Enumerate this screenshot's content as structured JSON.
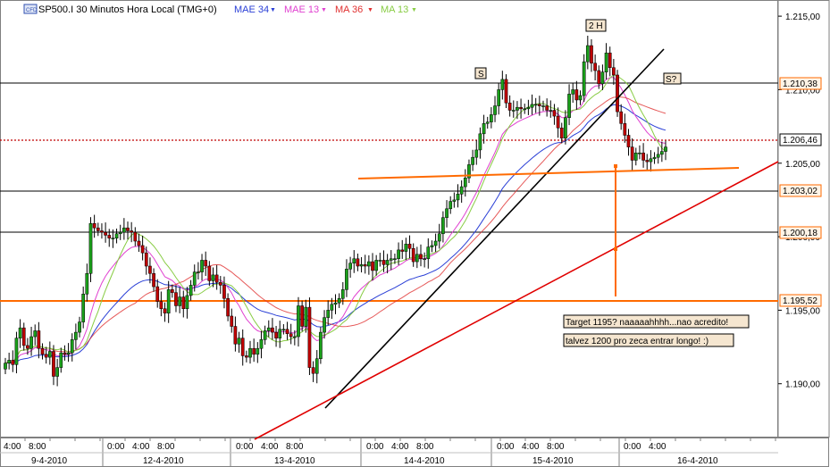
{
  "header": {
    "symbol_icon": "cfd-icon",
    "title": "SP500.I 30 Minutos Hora Local (TMG+0)",
    "indicators": [
      {
        "label": "MAE 34",
        "color": "#2a3fd6"
      },
      {
        "label": "MAE 13",
        "color": "#e040d0"
      },
      {
        "label": "MA 36",
        "color": "#e03030"
      },
      {
        "label": "MA 13",
        "color": "#88cc44"
      }
    ]
  },
  "chart_data": {
    "type": "candlestick",
    "y_axis": {
      "ylim": [
        1.1864,
        1.2161
      ],
      "ticks": [
        "1.215,00",
        "1.210,00",
        "1.205,00",
        "1.200,00",
        "1.195,00",
        "1.190,00"
      ],
      "tick_values": [
        1.215,
        1.21,
        1.205,
        1.2,
        1.195,
        1.19
      ]
    },
    "x_axis": {
      "days": [
        "9-4-2010",
        "12-4-2010",
        "13-4-2010",
        "14-4-2010",
        "15-4-2010",
        "16-4-2010"
      ],
      "session_hours": [
        "0:00",
        "4:00",
        "8:00"
      ]
    },
    "close": [
      1.1914,
      1.1916,
      1.1913,
      1.1931,
      1.1938,
      1.1926,
      1.1924,
      1.1932,
      1.1936,
      1.1924,
      1.192,
      1.1918,
      1.1922,
      1.1905,
      1.1911,
      1.1921,
      1.192,
      1.1921,
      1.193,
      1.1935,
      1.1942,
      1.1961,
      1.1975,
      1.2009,
      1.2006,
      1.2004,
      1.2003,
      1.2001,
      1.1999,
      1.1999,
      1.2002,
      1.2003,
      1.2006,
      1.2004,
      1.2003,
      1.1997,
      1.1994,
      1.1989,
      1.198,
      1.1975,
      1.1966,
      1.1956,
      1.1951,
      1.1948,
      1.1964,
      1.1962,
      1.1953,
      1.1959,
      1.1951,
      1.196,
      1.1967,
      1.1976,
      1.1976,
      1.1984,
      1.198,
      1.197,
      1.1974,
      1.1969,
      1.1967,
      1.1958,
      1.1946,
      1.1939,
      1.1927,
      1.1931,
      1.1919,
      1.1918,
      1.1924,
      1.192,
      1.1924,
      1.193,
      1.1936,
      1.1938,
      1.1935,
      1.1931,
      1.1937,
      1.1937,
      1.1934,
      1.1932,
      1.1932,
      1.1953,
      1.1939,
      1.1952,
      1.1911,
      1.1907,
      1.1917,
      1.1935,
      1.1945,
      1.195,
      1.1954,
      1.1955,
      1.1958,
      1.1964,
      1.1978,
      1.1982,
      1.1985,
      1.198,
      1.1981,
      1.198,
      1.1983,
      1.1977,
      1.1984,
      1.1984,
      1.1981,
      1.1984,
      1.1985,
      1.1985,
      1.1991,
      1.199,
      1.1995,
      1.1992,
      1.1983,
      1.1988,
      1.1985,
      1.1985,
      1.1993,
      1.1994,
      1.1997,
      1.2002,
      1.2013,
      1.2019,
      1.2024,
      1.2025,
      1.2029,
      1.2034,
      1.204,
      1.2049,
      1.2054,
      1.2059,
      1.207,
      1.2077,
      1.2078,
      1.2083,
      1.2089,
      1.21,
      1.2107,
      1.2091,
      1.2086,
      1.2086,
      1.2088,
      1.2087,
      1.2087,
      1.2088,
      1.209,
      1.209,
      1.2089,
      1.2089,
      1.2086,
      1.2086,
      1.2082,
      1.2074,
      1.2067,
      1.2081,
      1.2097,
      1.21,
      1.2093,
      1.2096,
      1.2119,
      1.213,
      1.2118,
      1.2113,
      1.2104,
      1.2112,
      1.2125,
      1.2115,
      1.211,
      1.2085,
      1.2077,
      1.2069,
      1.2061,
      1.2052,
      1.2057,
      1.2057,
      1.2052,
      1.2051,
      1.2053,
      1.2054,
      1.2056,
      1.2058,
      1.2061
    ]
  }
}
